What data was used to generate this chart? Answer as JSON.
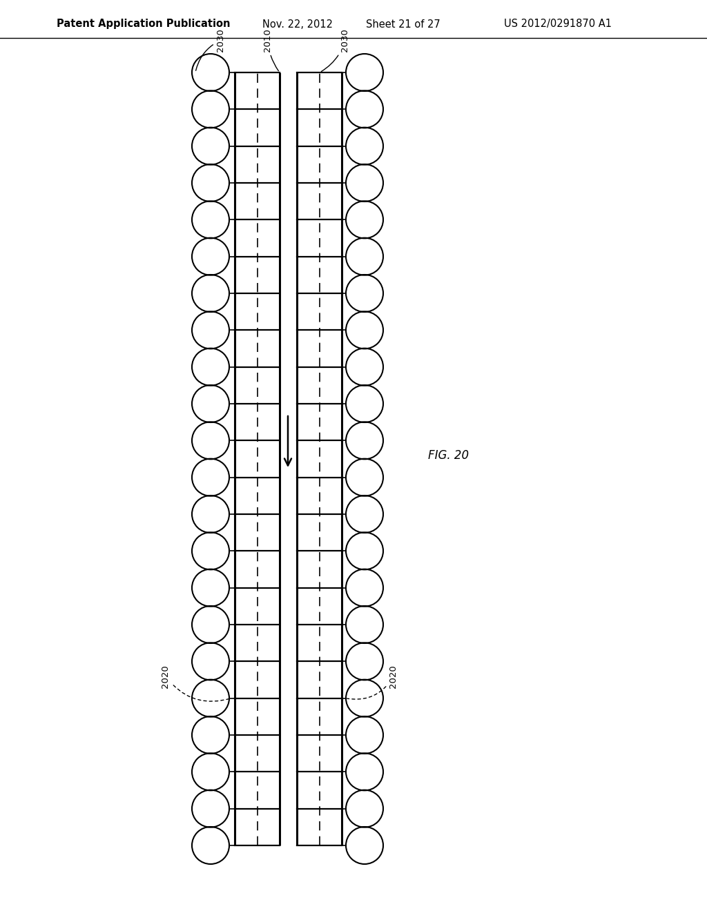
{
  "title_left": "Patent Application Publication",
  "title_date": "Nov. 22, 2012",
  "title_sheet": "Sheet 21 of 27",
  "title_patent": "US 2012/0291870 A1",
  "fig_label": "FIG. 20",
  "label_2010": "2010",
  "label_2020": "2020",
  "label_2030": "2030",
  "background_color": "#ffffff",
  "line_color": "#000000",
  "n_bubbles": 22,
  "figsize": [
    10.24,
    13.2
  ],
  "dpi": 100
}
